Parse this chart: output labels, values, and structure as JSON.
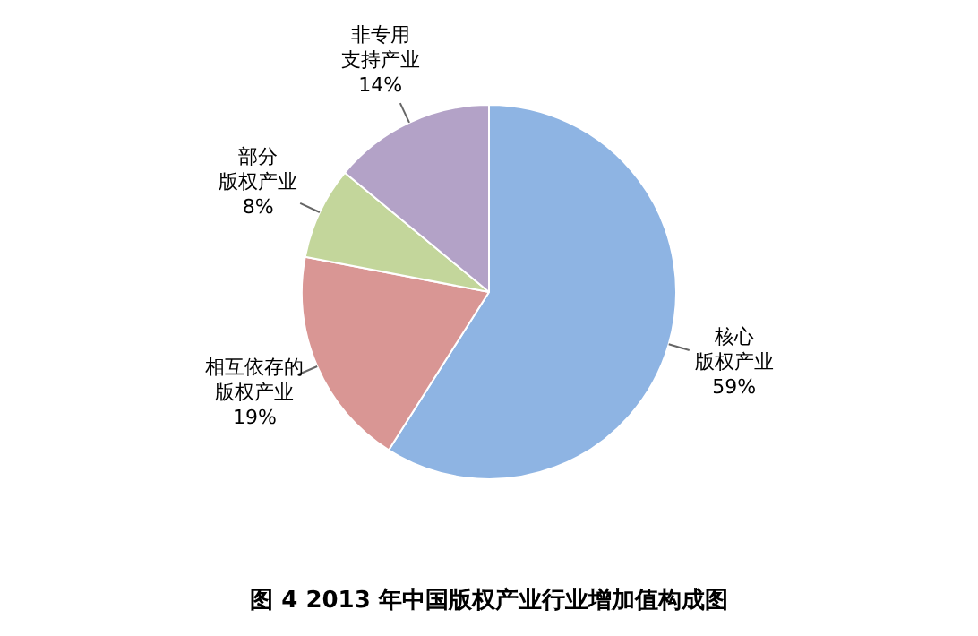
{
  "chart_data": {
    "type": "pie",
    "title": "图 4   2013 年中国版权产业行业增加值构成图",
    "categories": [
      "核心版权产业",
      "相互依存的版权产业",
      "部分版权产业",
      "非专用支持产业"
    ],
    "values": [
      59,
      19,
      8,
      14
    ],
    "value_labels": [
      "59%",
      "19%",
      "8%",
      "14%"
    ],
    "colors": [
      "#8eb4e3",
      "#d99694",
      "#c3d69b",
      "#b3a2c7"
    ],
    "legend": false
  }
}
